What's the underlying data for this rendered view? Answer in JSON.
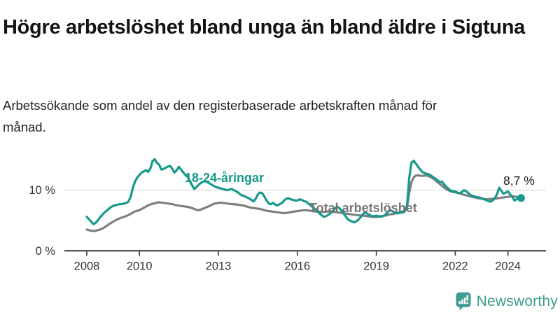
{
  "header": {
    "title": "Högre arbetslöshet bland unga än bland äldre i Sigtuna",
    "subtitle": "Arbetssökande som andel av den registerbaserade arbetskraften månad för månad."
  },
  "branding": {
    "logo_text": "Newsworthy",
    "logo_icon": "newsworthy-bar-chart-bubble-icon",
    "logo_color": "#3e9c90"
  },
  "chart_data": {
    "type": "line",
    "unit": "%",
    "interval": "monthly",
    "x_start": "2008-01",
    "x_end": "2024-07",
    "x_ticks": [
      2008,
      2010,
      2013,
      2016,
      2019,
      2022,
      2024
    ],
    "y_ticks": [
      {
        "value": 0,
        "label": "0 %"
      },
      {
        "value": 10,
        "label": "10 %"
      }
    ],
    "ylim": [
      0,
      17
    ],
    "grid": "single-horizontal-line-at-10",
    "legend_position": "inline-labels-on-chart",
    "annotation": {
      "text": "8,7 %",
      "series": "18-24-åringar",
      "value": 8.7,
      "x": "2024-07"
    },
    "axis_color": "#333333",
    "gridline_color": "#d9d9d9",
    "series": [
      {
        "name": "Total arbetslöshet",
        "color": "#7f7f7f",
        "end_dot": false,
        "values": [
          3.5,
          3.4,
          3.3,
          3.25,
          3.3,
          3.4,
          3.5,
          3.65,
          3.85,
          4.1,
          4.35,
          4.6,
          4.8,
          5.0,
          5.2,
          5.35,
          5.5,
          5.6,
          5.75,
          5.9,
          6.1,
          6.3,
          6.5,
          6.6,
          6.7,
          6.9,
          7.1,
          7.3,
          7.5,
          7.65,
          7.75,
          7.85,
          7.95,
          8.0,
          7.95,
          7.9,
          7.85,
          7.8,
          7.75,
          7.7,
          7.6,
          7.5,
          7.45,
          7.4,
          7.35,
          7.3,
          7.25,
          7.15,
          7.05,
          6.9,
          6.75,
          6.7,
          6.8,
          6.95,
          7.1,
          7.25,
          7.4,
          7.6,
          7.75,
          7.85,
          7.9,
          7.95,
          7.9,
          7.85,
          7.8,
          7.75,
          7.7,
          7.7,
          7.65,
          7.6,
          7.55,
          7.5,
          7.4,
          7.3,
          7.2,
          7.1,
          7.05,
          7.0,
          6.95,
          6.9,
          6.8,
          6.7,
          6.6,
          6.55,
          6.5,
          6.45,
          6.4,
          6.35,
          6.3,
          6.25,
          6.2,
          6.25,
          6.3,
          6.4,
          6.45,
          6.5,
          6.55,
          6.6,
          6.65,
          6.7,
          6.7,
          6.65,
          6.6,
          6.55,
          6.5,
          6.45,
          6.4,
          6.4,
          6.4,
          6.45,
          6.5,
          6.5,
          6.45,
          6.4,
          6.35,
          6.3,
          6.25,
          6.2,
          6.15,
          6.1,
          6.05,
          6.0,
          5.95,
          5.9,
          5.85,
          5.8,
          5.8,
          5.75,
          5.7,
          5.65,
          5.6,
          5.6,
          5.6,
          5.65,
          5.7,
          5.75,
          5.8,
          5.9,
          6.0,
          6.05,
          6.1,
          6.2,
          6.3,
          6.4,
          6.5,
          6.6,
          7.3,
          9.5,
          11.3,
          12.1,
          12.4,
          12.45,
          12.4,
          12.35,
          12.4,
          12.4,
          12.3,
          12.1,
          11.9,
          11.6,
          11.3,
          11.0,
          10.7,
          10.4,
          10.15,
          9.95,
          9.8,
          9.7,
          9.65,
          9.55,
          9.45,
          9.35,
          9.25,
          9.15,
          9.05,
          8.95,
          8.85,
          8.8,
          8.7,
          8.65,
          8.6,
          8.55,
          8.5,
          8.5,
          8.55,
          8.6,
          8.6,
          8.65,
          8.7,
          8.75,
          8.8,
          8.85,
          8.9,
          8.95,
          9.0,
          8.95,
          8.9,
          8.9,
          8.9
        ]
      },
      {
        "name": "18-24-åringar",
        "color": "#17998c",
        "end_dot": true,
        "values": [
          5.6,
          5.2,
          4.8,
          4.4,
          4.6,
          5.0,
          5.5,
          5.9,
          6.3,
          6.6,
          6.9,
          7.2,
          7.4,
          7.5,
          7.6,
          7.7,
          7.7,
          7.8,
          7.9,
          8.1,
          8.9,
          10.4,
          11.4,
          12.1,
          12.5,
          12.9,
          13.1,
          13.3,
          13.0,
          13.6,
          14.8,
          15.1,
          14.5,
          14.2,
          13.4,
          13.5,
          13.7,
          13.9,
          14.0,
          13.5,
          12.9,
          13.3,
          13.85,
          13.4,
          12.9,
          12.5,
          12.2,
          11.5,
          10.8,
          10.2,
          10.5,
          10.9,
          11.2,
          11.4,
          11.5,
          11.3,
          11.1,
          10.9,
          10.7,
          10.5,
          10.4,
          10.3,
          10.2,
          10.1,
          10.0,
          10.1,
          10.2,
          10.0,
          9.85,
          9.6,
          9.3,
          9.1,
          9.0,
          8.8,
          8.65,
          8.4,
          8.15,
          8.6,
          9.3,
          9.6,
          9.5,
          8.9,
          8.3,
          7.8,
          7.7,
          7.9,
          7.6,
          7.5,
          7.7,
          7.9,
          8.3,
          8.6,
          8.65,
          8.5,
          8.4,
          8.3,
          8.3,
          8.5,
          8.4,
          8.2,
          8.1,
          7.8,
          7.5,
          7.2,
          6.9,
          6.6,
          6.2,
          5.9,
          5.6,
          5.7,
          5.9,
          6.2,
          6.5,
          6.9,
          7.3,
          7.1,
          6.7,
          6.2,
          5.7,
          5.2,
          5.0,
          4.8,
          4.7,
          4.9,
          5.2,
          5.6,
          6.1,
          6.3,
          6.1,
          5.9,
          5.7,
          5.7,
          5.8,
          5.7,
          5.6,
          5.7,
          5.9,
          6.3,
          6.7,
          6.6,
          6.4,
          6.2,
          6.2,
          6.3,
          6.3,
          6.5,
          7.5,
          12.0,
          14.5,
          14.85,
          14.4,
          13.9,
          13.4,
          13.0,
          12.8,
          12.7,
          12.6,
          12.4,
          12.1,
          11.9,
          11.6,
          11.3,
          11.4,
          10.9,
          10.5,
          10.2,
          9.9,
          9.85,
          9.8,
          9.6,
          9.5,
          9.7,
          10.0,
          9.8,
          9.5,
          9.2,
          9.05,
          8.95,
          8.85,
          8.8,
          8.65,
          8.5,
          8.4,
          8.2,
          8.1,
          8.3,
          8.65,
          9.3,
          10.4,
          9.9,
          9.4,
          9.6,
          9.8,
          9.3,
          8.9,
          8.3,
          8.5,
          8.85,
          8.7
        ]
      }
    ]
  }
}
